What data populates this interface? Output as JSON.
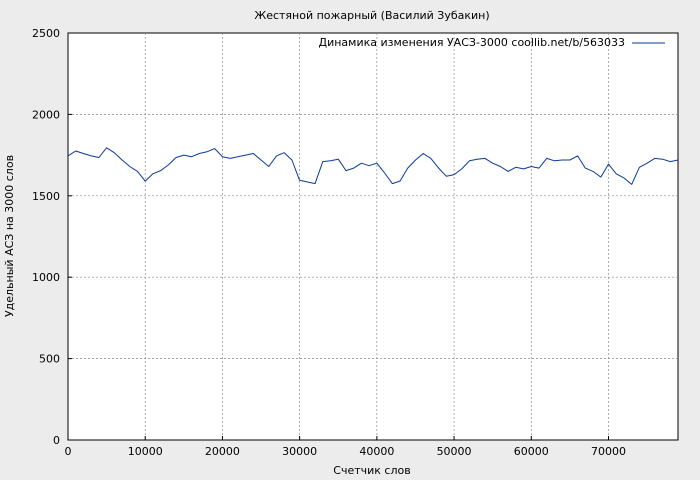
{
  "chart_data": {
    "type": "line",
    "title": "Жестяной пожарный (Василий Зубакин)",
    "xlabel": "Счетчик слов",
    "ylabel": "Удельный АСЗ на 3000 слов",
    "xlim": [
      0,
      79000
    ],
    "ylim": [
      0,
      2500
    ],
    "xticks": [
      0,
      10000,
      20000,
      30000,
      40000,
      50000,
      60000,
      70000
    ],
    "yticks": [
      0,
      500,
      1000,
      1500,
      2000,
      2500
    ],
    "grid": true,
    "legend_position": "top-right",
    "series": [
      {
        "name": "Динамика изменения УАСЗ-3000 coollib.net/b/563033",
        "color": "#0a3a9a",
        "x": [
          0,
          1000,
          2000,
          3000,
          4000,
          5000,
          6000,
          7000,
          8000,
          9000,
          10000,
          11000,
          12000,
          13000,
          14000,
          15000,
          16000,
          17000,
          18000,
          19000,
          20000,
          21000,
          22000,
          23000,
          24000,
          25000,
          26000,
          27000,
          28000,
          29000,
          30000,
          31000,
          32000,
          33000,
          34000,
          35000,
          36000,
          37000,
          38000,
          39000,
          40000,
          41000,
          42000,
          43000,
          44000,
          45000,
          46000,
          47000,
          48000,
          49000,
          50000,
          51000,
          52000,
          53000,
          54000,
          55000,
          56000,
          57000,
          58000,
          59000,
          60000,
          61000,
          62000,
          63000,
          64000,
          65000,
          66000,
          67000,
          68000,
          69000,
          70000,
          71000,
          72000,
          73000,
          74000,
          75000,
          76000,
          77000,
          78000,
          79000
        ],
        "y": [
          1745,
          1775,
          1760,
          1745,
          1735,
          1795,
          1765,
          1720,
          1680,
          1650,
          1590,
          1635,
          1655,
          1690,
          1735,
          1750,
          1740,
          1760,
          1770,
          1790,
          1740,
          1730,
          1740,
          1750,
          1760,
          1720,
          1680,
          1745,
          1765,
          1720,
          1595,
          1585,
          1575,
          1710,
          1715,
          1725,
          1655,
          1670,
          1700,
          1685,
          1700,
          1640,
          1575,
          1590,
          1670,
          1720,
          1760,
          1730,
          1670,
          1620,
          1630,
          1665,
          1715,
          1725,
          1730,
          1700,
          1680,
          1650,
          1675,
          1665,
          1680,
          1670,
          1730,
          1715,
          1720,
          1720,
          1745,
          1670,
          1650,
          1615,
          1695,
          1635,
          1610,
          1570,
          1675,
          1700,
          1730,
          1725,
          1710,
          1720
        ]
      }
    ]
  }
}
